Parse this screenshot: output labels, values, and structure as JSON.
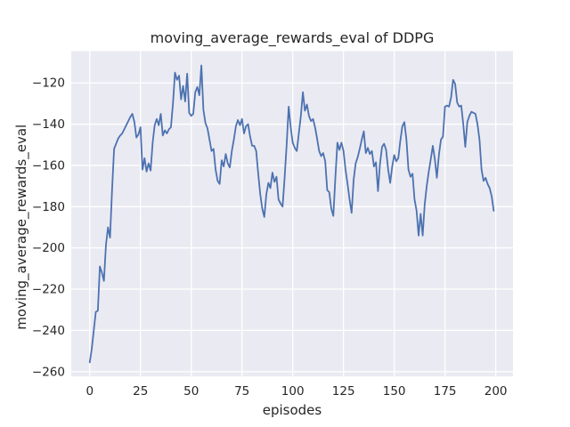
{
  "figure": {
    "background": "#ffffff"
  },
  "chart_data": {
    "type": "line",
    "title": "moving_average_rewards_eval of DDPG",
    "xlabel": "episodes",
    "ylabel": "moving_average_rewards_eval",
    "x_ticks": [
      0,
      25,
      50,
      75,
      100,
      125,
      150,
      175,
      200
    ],
    "y_ticks": [
      -120,
      -140,
      -160,
      -180,
      -200,
      -220,
      -240,
      -260
    ],
    "xlim": [
      -9.1,
      208.5
    ],
    "ylim": [
      -262.3,
      -104.6
    ],
    "grid": true,
    "legend_position": "none",
    "style": "seaborn-darkgrid",
    "colors": {
      "line": "#4c72b0",
      "plot_background": "#eaeaf2",
      "grid": "#ffffff",
      "text": "#262626"
    },
    "series": [
      {
        "name": "moving_average_rewards_eval",
        "x_start": 0,
        "x_step": 1,
        "values": [
          -255.5,
          -249,
          -240,
          -231,
          -230.5,
          -209,
          -212,
          -216,
          -198.5,
          -190,
          -195,
          -172,
          -152,
          -149.5,
          -147,
          -145.5,
          -144.5,
          -142.5,
          -140.5,
          -138.5,
          -136.5,
          -135,
          -139,
          -146.5,
          -145,
          -141.5,
          -162,
          -156.5,
          -163,
          -159,
          -162.5,
          -149,
          -140.5,
          -137.5,
          -140.5,
          -135,
          -145.5,
          -143,
          -144.5,
          -142.5,
          -141.5,
          -130,
          -115,
          -118.5,
          -116.5,
          -128,
          -121.5,
          -129,
          -115.5,
          -134.5,
          -136,
          -135,
          -124.5,
          -122,
          -126,
          -111.5,
          -133,
          -139.5,
          -142,
          -147.5,
          -153,
          -152,
          -162,
          -167.5,
          -169,
          -157.5,
          -160.5,
          -154.5,
          -159,
          -161,
          -153,
          -147.5,
          -141,
          -138,
          -140.5,
          -137.5,
          -144.5,
          -141,
          -140,
          -146,
          -150.5,
          -150.5,
          -153,
          -164,
          -174,
          -181,
          -185,
          -174,
          -168.5,
          -171,
          -163.5,
          -168,
          -165.5,
          -176.5,
          -178.5,
          -180,
          -166,
          -150,
          -131.5,
          -141.5,
          -149,
          -151.5,
          -153,
          -144.5,
          -136,
          -124.5,
          -133.5,
          -130.5,
          -136,
          -138.5,
          -137.5,
          -141.5,
          -147,
          -153,
          -155.5,
          -154,
          -158,
          -172,
          -173,
          -181,
          -184.5,
          -166,
          -149,
          -152.5,
          -149,
          -153,
          -162,
          -169,
          -176.5,
          -183,
          -167,
          -159,
          -156,
          -152,
          -147.5,
          -143.5,
          -154,
          -151.5,
          -154.5,
          -153,
          -160.5,
          -158.5,
          -172.5,
          -159,
          -151,
          -149.5,
          -152.5,
          -162,
          -168.5,
          -160.5,
          -155,
          -158,
          -156.5,
          -148,
          -141,
          -139,
          -147.5,
          -162,
          -165.5,
          -164,
          -176.5,
          -182,
          -194,
          -183.5,
          -194,
          -179,
          -170,
          -163,
          -157,
          -150.5,
          -157,
          -166,
          -155,
          -147.5,
          -146,
          -131.5,
          -131,
          -131.5,
          -127,
          -118.5,
          -120.5,
          -129.5,
          -131.5,
          -131,
          -140,
          -151,
          -139,
          -136,
          -134,
          -134.5,
          -135,
          -140,
          -147.5,
          -162,
          -167.5,
          -166,
          -169,
          -171,
          -175,
          -182
        ]
      }
    ]
  }
}
